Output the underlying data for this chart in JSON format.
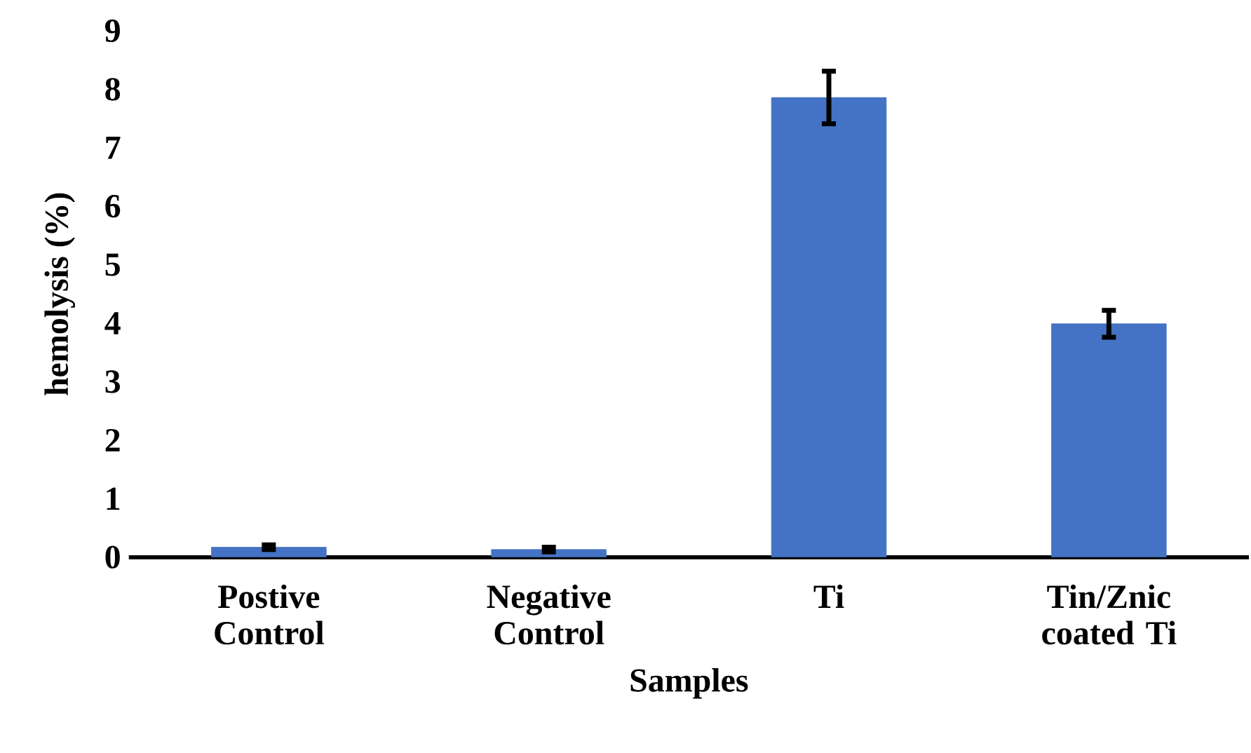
{
  "chart_data": {
    "type": "bar",
    "xlabel": "Samples",
    "ylabel": "hemolysis (%)",
    "categories": [
      "Postive Control",
      "Negative Control",
      "Ti",
      "Tin/Znic coated Ti"
    ],
    "values": [
      0.17,
      0.13,
      7.86,
      3.99
    ],
    "errors": [
      0.04,
      0.04,
      0.45,
      0.23
    ],
    "color": "#4472c4",
    "ylim": [
      0,
      9
    ],
    "yticks": [
      0,
      1,
      2,
      3,
      4,
      5,
      6,
      7,
      8,
      9
    ]
  }
}
